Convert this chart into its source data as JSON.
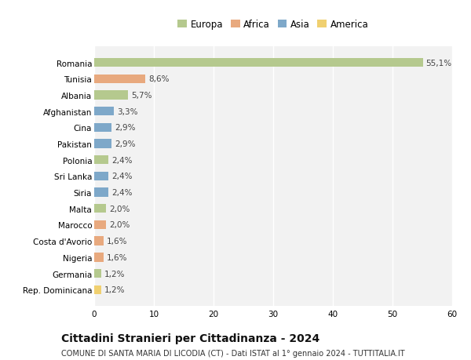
{
  "countries": [
    "Romania",
    "Tunisia",
    "Albania",
    "Afghanistan",
    "Cina",
    "Pakistan",
    "Polonia",
    "Sri Lanka",
    "Siria",
    "Malta",
    "Marocco",
    "Costa d'Avorio",
    "Nigeria",
    "Germania",
    "Rep. Dominicana"
  ],
  "values": [
    55.1,
    8.6,
    5.7,
    3.3,
    2.9,
    2.9,
    2.4,
    2.4,
    2.4,
    2.0,
    2.0,
    1.6,
    1.6,
    1.2,
    1.2
  ],
  "labels": [
    "55,1%",
    "8,6%",
    "5,7%",
    "3,3%",
    "2,9%",
    "2,9%",
    "2,4%",
    "2,4%",
    "2,4%",
    "2,0%",
    "2,0%",
    "1,6%",
    "1,6%",
    "1,2%",
    "1,2%"
  ],
  "colors": [
    "#b5c98e",
    "#e8a97e",
    "#b5c98e",
    "#7ea8c9",
    "#7ea8c9",
    "#7ea8c9",
    "#b5c98e",
    "#7ea8c9",
    "#7ea8c9",
    "#b5c98e",
    "#e8a97e",
    "#e8a97e",
    "#e8a97e",
    "#b5c98e",
    "#f0d070"
  ],
  "legend_labels": [
    "Europa",
    "Africa",
    "Asia",
    "America"
  ],
  "legend_colors": [
    "#b5c98e",
    "#e8a97e",
    "#7ea8c9",
    "#f0d070"
  ],
  "title": "Cittadini Stranieri per Cittadinanza - 2024",
  "subtitle": "COMUNE DI SANTA MARIA DI LICODIA (CT) - Dati ISTAT al 1° gennaio 2024 - TUTTITALIA.IT",
  "xlim": [
    0,
    60
  ],
  "xticks": [
    0,
    10,
    20,
    30,
    40,
    50,
    60
  ],
  "bg_color": "#ffffff",
  "plot_bg_color": "#f2f2f2",
  "grid_color": "#ffffff",
  "bar_height": 0.55,
  "label_fontsize": 7.5,
  "tick_fontsize": 7.5,
  "legend_fontsize": 8.5,
  "title_fontsize": 10,
  "subtitle_fontsize": 7
}
